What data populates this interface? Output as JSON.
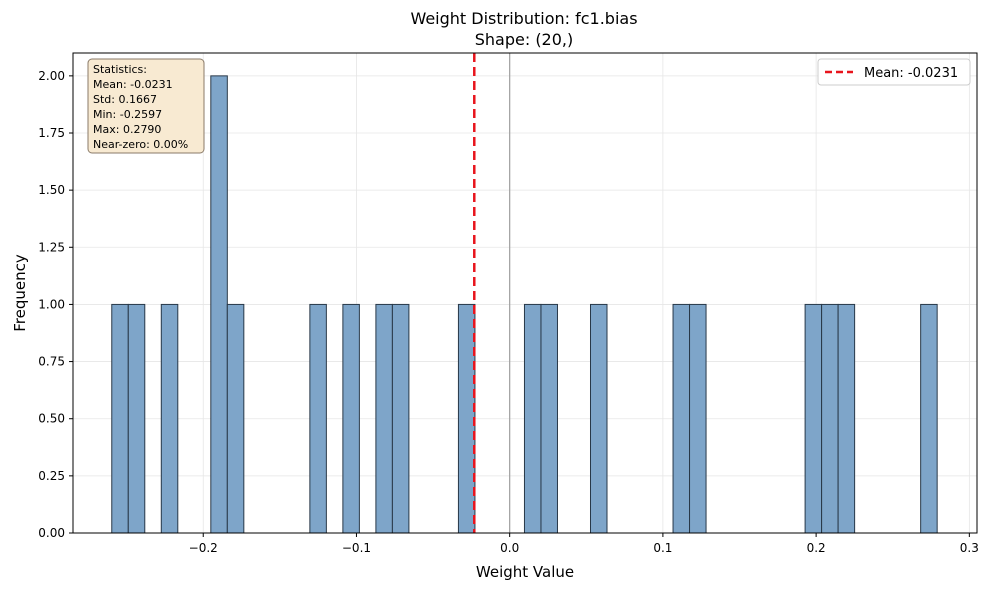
{
  "chart_data": {
    "type": "bar",
    "title": "Weight Distribution: fc1.bias",
    "subtitle": "Shape: (20,)",
    "xlabel": "Weight Value",
    "ylabel": "Frequency",
    "xlim": [
      -0.285,
      0.305
    ],
    "ylim": [
      0,
      2.1
    ],
    "xticks": [
      -0.2,
      -0.1,
      0.0,
      0.1,
      0.2,
      0.3
    ],
    "xtick_labels": [
      "−0.2",
      "−0.1",
      "0.0",
      "0.1",
      "0.2",
      "0.3"
    ],
    "yticks": [
      0,
      0.25,
      0.5,
      0.75,
      1.0,
      1.25,
      1.5,
      1.75,
      2.0
    ],
    "ytick_labels": [
      "0.00",
      "0.25",
      "0.50",
      "0.75",
      "1.00",
      "1.25",
      "1.50",
      "1.75",
      "2.00"
    ],
    "grid": true,
    "bin_start": -0.2597,
    "bin_width": 0.010774,
    "bins": [
      {
        "index": 0,
        "count": 1
      },
      {
        "index": 1,
        "count": 1
      },
      {
        "index": 3,
        "count": 1
      },
      {
        "index": 6,
        "count": 2
      },
      {
        "index": 7,
        "count": 1
      },
      {
        "index": 12,
        "count": 1
      },
      {
        "index": 14,
        "count": 1
      },
      {
        "index": 16,
        "count": 1
      },
      {
        "index": 17,
        "count": 1
      },
      {
        "index": 21,
        "count": 1
      },
      {
        "index": 25,
        "count": 1
      },
      {
        "index": 26,
        "count": 1
      },
      {
        "index": 29,
        "count": 1
      },
      {
        "index": 34,
        "count": 1
      },
      {
        "index": 35,
        "count": 1
      },
      {
        "index": 42,
        "count": 1
      },
      {
        "index": 43,
        "count": 1
      },
      {
        "index": 44,
        "count": 1
      },
      {
        "index": 49,
        "count": 1
      }
    ],
    "mean_line": {
      "x": -0.0231,
      "label": "Mean: -0.0231",
      "color": "#e8141c"
    },
    "zero_line": {
      "x": 0.0,
      "color": "#a0a0a0"
    },
    "legend": {
      "placement": "top-right",
      "entries": [
        "Mean: -0.0231"
      ]
    },
    "stats_box": {
      "placement": "top-left",
      "lines": [
        "Statistics:",
        "Mean: -0.0231",
        "Std: 0.1667",
        "Min: -0.2597",
        "Max: 0.2790",
        "Near-zero: 0.00%"
      ]
    },
    "colors": {
      "bar_fill": "#7ea5c9",
      "bar_edge": "#283848",
      "stats_bg": "#f8ead2",
      "stats_edge": "#8a7a68"
    }
  }
}
